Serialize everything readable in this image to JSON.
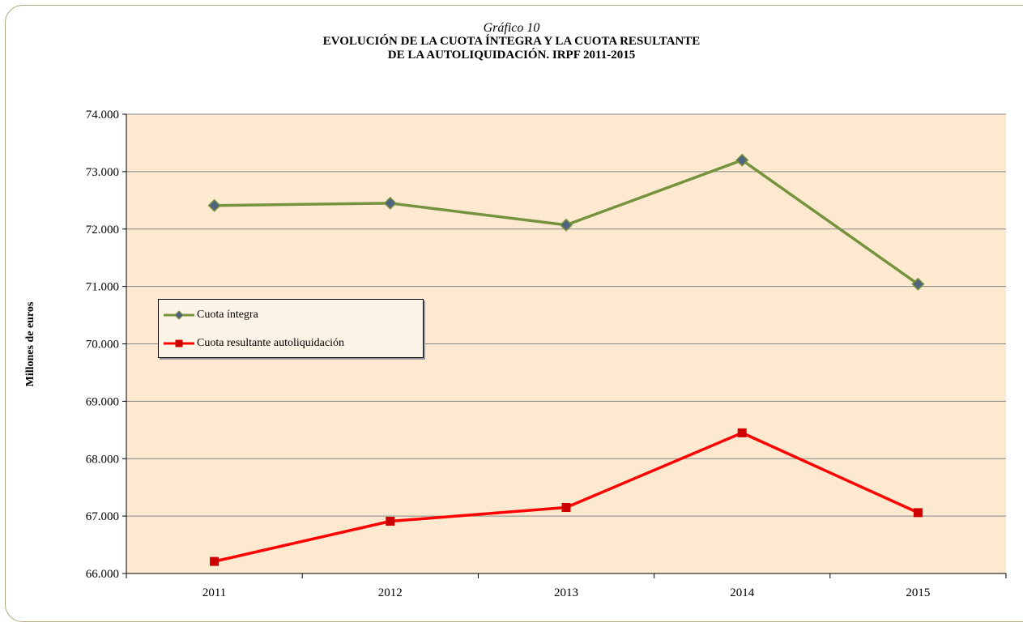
{
  "header": {
    "figure_number": "Gráfico 10",
    "title_line1": "EVOLUCIÓN  DE LA CUOTA ÍNTEGRA Y LA CUOTA RESULTANTE",
    "title_line2": "DE LA AUTOLIQUIDACIÓN.  IRPF 2011-2015"
  },
  "chart_data": {
    "type": "line",
    "title": "EVOLUCIÓN  DE LA CUOTA ÍNTEGRA Y LA CUOTA RESULTANTE DE LA AUTOLIQUIDACIÓN.  IRPF 2011-2015",
    "xlabel": "",
    "ylabel": "Millones de euros",
    "categories": [
      "2011",
      "2012",
      "2013",
      "2014",
      "2015"
    ],
    "ylim": [
      66000,
      74000
    ],
    "yticks": [
      66000,
      67000,
      68000,
      69000,
      70000,
      71000,
      72000,
      73000,
      74000
    ],
    "ytick_labels": [
      "66.000",
      "67.000",
      "68.000",
      "69.000",
      "70.000",
      "71.000",
      "72.000",
      "73.000",
      "74.000"
    ],
    "grid": true,
    "legend_position": "left-middle",
    "plot_background": "#fde9d0",
    "series": [
      {
        "name": "Cuota íntegra",
        "color": "#76923c",
        "marker": "diamond",
        "marker_color": "#4f6380",
        "values": [
          72410,
          72450,
          72070,
          73200,
          71040
        ]
      },
      {
        "name": "Cuota resultante autoliquidación",
        "color": "#ff0000",
        "marker": "square",
        "marker_color": "#cc0000",
        "values": [
          66210,
          66910,
          67150,
          68450,
          67060
        ]
      }
    ]
  }
}
